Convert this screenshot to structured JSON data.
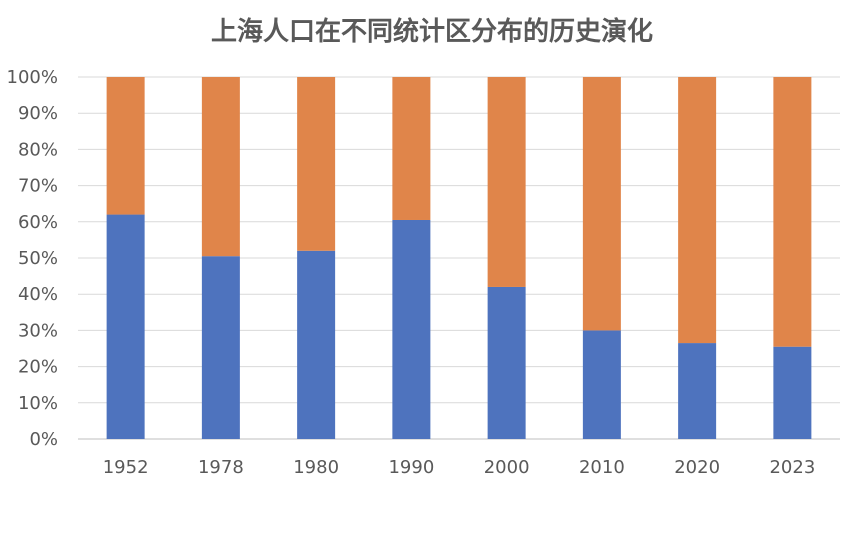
{
  "chart_data": {
    "type": "bar",
    "stacked": true,
    "percent_stacked": true,
    "title": "上海人口在不同统计区分布的历史演化",
    "xlabel": "",
    "ylabel": "",
    "categories": [
      "1952",
      "1978",
      "1980",
      "1990",
      "2000",
      "2010",
      "2020",
      "2023"
    ],
    "series": [
      {
        "color": "#4e73be",
        "values": [
          62,
          50.5,
          52,
          60.5,
          42,
          30,
          26.5,
          25.5
        ]
      },
      {
        "color": "#e0854a",
        "values": [
          38,
          49.5,
          48,
          39.5,
          58,
          70,
          73.5,
          74.5
        ]
      }
    ],
    "ylim": [
      0,
      100
    ],
    "y_ticks": [
      "0%",
      "10%",
      "20%",
      "30%",
      "40%",
      "50%",
      "60%",
      "70%",
      "80%",
      "90%",
      "100%"
    ],
    "grid": true,
    "legend": "none"
  }
}
